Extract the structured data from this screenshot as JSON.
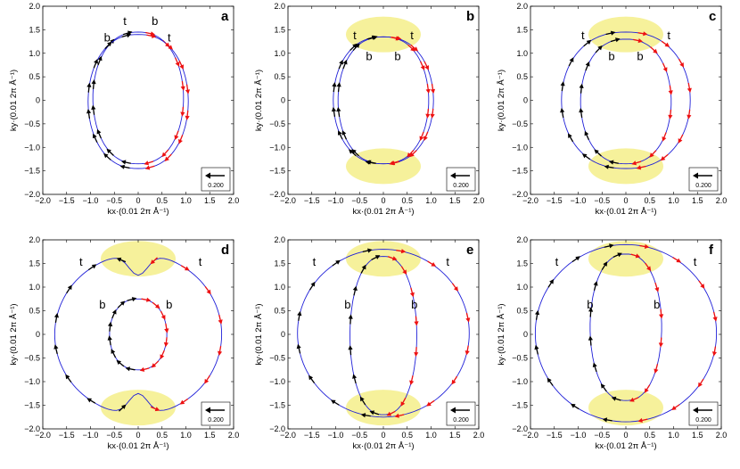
{
  "colors": {
    "contour": "#2020d8",
    "arrow_black": "#000000",
    "arrow_red": "#ee1111",
    "highlight": "#f5ef8a"
  },
  "chart_data": [
    {
      "type": "line",
      "panel": "a",
      "xlabel": "kx·(0.01 2π Å⁻¹)",
      "ylabel": "ky·(0.01 2π Å⁻¹)",
      "xlim": [
        -2.0,
        2.0
      ],
      "ylim": [
        -2.0,
        2.0
      ],
      "x_ticks": [
        "−2.0",
        "−1.5",
        "−1.0",
        "−0.5",
        "0",
        "0.5",
        "1.0",
        "1.5",
        "2.0"
      ],
      "y_ticks": [
        "2.0",
        "1.5",
        "1.0",
        "0.5",
        "0",
        "−0.5",
        "−1.0",
        "−1.5",
        "−2.0"
      ],
      "scale_label": "0.200",
      "series": [
        {
          "name": "contour-t",
          "shape": "lens",
          "a": 0.95,
          "top": 1.45,
          "bottom": -1.35,
          "arrows": "black-up-outer"
        },
        {
          "name": "contour-b",
          "shape": "offset",
          "a": 1.05,
          "top": 1.4,
          "bottom": -1.45,
          "arrows": "red-down-outer"
        }
      ],
      "annotations": [
        {
          "text": "t",
          "x": -0.28,
          "y": 1.6
        },
        {
          "text": "b",
          "x": 0.35,
          "y": 1.6
        },
        {
          "text": "b",
          "x": -0.65,
          "y": 1.25
        },
        {
          "text": "t",
          "x": 0.65,
          "y": 1.25
        }
      ],
      "highlights": []
    },
    {
      "type": "line",
      "panel": "b",
      "xlabel": "kx·(0.01 2π Å⁻¹)",
      "ylabel": "ky·(0.01 2π Å⁻¹)",
      "xlim": [
        -2.0,
        2.0
      ],
      "ylim": [
        -2.0,
        2.0
      ],
      "x_ticks": [
        "−2.0",
        "−1.5",
        "−1.0",
        "−0.5",
        "0",
        "0.5",
        "1.0",
        "1.5",
        "2.0"
      ],
      "y_ticks": [
        "2.0",
        "1.5",
        "1.0",
        "0.5",
        "0",
        "−0.5",
        "−1.0",
        "−1.5",
        "−2.0"
      ],
      "scale_label": "0.200",
      "series": [
        {
          "name": "contour-t",
          "shape": "lens",
          "a": 1.05,
          "top": 1.35,
          "bottom": -1.35
        },
        {
          "name": "contour-b",
          "shape": "lens",
          "a": 0.95,
          "top": 1.35,
          "bottom": -1.35
        }
      ],
      "annotations": [
        {
          "text": "t",
          "x": -0.6,
          "y": 1.3
        },
        {
          "text": "b",
          "x": -0.3,
          "y": 0.85
        },
        {
          "text": "b",
          "x": 0.3,
          "y": 0.85
        },
        {
          "text": "t",
          "x": 0.6,
          "y": 1.3
        }
      ],
      "highlights": [
        {
          "x": 0.0,
          "y": 1.4
        },
        {
          "x": 0.0,
          "y": -1.4
        }
      ]
    },
    {
      "type": "line",
      "panel": "c",
      "xlabel": "kx·(0.01 2π Å⁻¹)",
      "ylabel": "ky·(0.01 2π Å⁻¹)",
      "xlim": [
        -2.0,
        2.0
      ],
      "ylim": [
        -2.0,
        2.0
      ],
      "x_ticks": [
        "−2.0",
        "−1.5",
        "−1.0",
        "−0.5",
        "0",
        "0.5",
        "1.0",
        "1.5",
        "2.0"
      ],
      "y_ticks": [
        "2.0",
        "1.5",
        "1.0",
        "0.5",
        "0",
        "−0.5",
        "−1.0",
        "−1.5",
        "−2.0"
      ],
      "scale_label": "0.200",
      "series": [
        {
          "name": "contour-t",
          "shape": "lens",
          "a": 1.35,
          "top": 1.45,
          "bottom": -1.45
        },
        {
          "name": "contour-b",
          "shape": "lens",
          "a": 0.95,
          "top": 1.3,
          "bottom": -1.35
        }
      ],
      "annotations": [
        {
          "text": "t",
          "x": -0.9,
          "y": 1.3
        },
        {
          "text": "b",
          "x": -0.3,
          "y": 0.85
        },
        {
          "text": "b",
          "x": 0.3,
          "y": 0.85
        },
        {
          "text": "t",
          "x": 0.9,
          "y": 1.3
        }
      ],
      "highlights": [
        {
          "x": 0.0,
          "y": 1.4
        },
        {
          "x": 0.0,
          "y": -1.4
        }
      ]
    },
    {
      "type": "line",
      "panel": "d",
      "xlabel": "kx·(0.01 2π Å⁻¹)",
      "ylabel": "ky·(0.01 2π Å⁻¹)",
      "xlim": [
        -2.0,
        2.0
      ],
      "ylim": [
        -2.0,
        2.0
      ],
      "x_ticks": [
        "−2.0",
        "−1.5",
        "−1.0",
        "−0.5",
        "0",
        "0.5",
        "1.0",
        "1.5",
        "2.0"
      ],
      "y_ticks": [
        "2.0",
        "1.5",
        "1.0",
        "0.5",
        "0",
        "−0.5",
        "−1.0",
        "−1.5",
        "−2.0"
      ],
      "scale_label": "0.200",
      "series": [
        {
          "name": "contour-t",
          "shape": "notched",
          "a": 1.75,
          "top": 1.7,
          "bottom": -1.7
        },
        {
          "name": "contour-b",
          "shape": "lens",
          "a": 0.6,
          "top": 0.75,
          "bottom": -0.75
        }
      ],
      "annotations": [
        {
          "text": "t",
          "x": -1.2,
          "y": 1.45
        },
        {
          "text": "b",
          "x": -0.75,
          "y": 0.55
        },
        {
          "text": "b",
          "x": 0.65,
          "y": 0.55
        },
        {
          "text": "t",
          "x": 1.3,
          "y": 1.45
        }
      ],
      "highlights": [
        {
          "x": 0.0,
          "y": 1.6
        },
        {
          "x": 0.0,
          "y": -1.55
        }
      ]
    },
    {
      "type": "line",
      "panel": "e",
      "xlabel": "kx·(0.01 2π Å⁻¹)",
      "ylabel": "ky·(0.01 2π Å⁻¹)",
      "xlim": [
        -2.0,
        2.0
      ],
      "ylim": [
        -2.0,
        2.0
      ],
      "x_ticks": [
        "−2.0",
        "−1.5",
        "−1.0",
        "−0.5",
        "0",
        "0.5",
        "1.0",
        "1.5",
        "2.0"
      ],
      "y_ticks": [
        "2.0",
        "1.5",
        "1.0",
        "0.5",
        "0",
        "−0.5",
        "−1.0",
        "−1.5",
        "−2.0"
      ],
      "scale_label": "0.200",
      "series": [
        {
          "name": "contour-t",
          "shape": "circle",
          "a": 1.8,
          "top": 1.8,
          "bottom": -1.75
        },
        {
          "name": "contour-b",
          "shape": "lens",
          "a": 0.7,
          "top": 1.65,
          "bottom": -1.7
        }
      ],
      "annotations": [
        {
          "text": "t",
          "x": -1.45,
          "y": 1.45
        },
        {
          "text": "b",
          "x": -0.75,
          "y": 0.55
        },
        {
          "text": "b",
          "x": 0.65,
          "y": 0.55
        },
        {
          "text": "t",
          "x": 1.35,
          "y": 1.45
        }
      ],
      "highlights": [
        {
          "x": 0.0,
          "y": 1.6
        },
        {
          "x": 0.0,
          "y": -1.55
        }
      ]
    },
    {
      "type": "line",
      "panel": "f",
      "xlabel": "kx·(0.01 2π Å⁻¹)",
      "ylabel": "ky·(0.01 2π Å⁻¹)",
      "xlim": [
        -2.0,
        2.0
      ],
      "ylim": [
        -2.0,
        2.0
      ],
      "x_ticks": [
        "−2.0",
        "−1.5",
        "−1.0",
        "−0.5",
        "0",
        "0.5",
        "1.0",
        "1.5",
        "2.0"
      ],
      "y_ticks": [
        "2.0",
        "1.5",
        "1.0",
        "0.5",
        "0",
        "−0.5",
        "−1.0",
        "−1.5",
        "−2.0"
      ],
      "scale_label": "0.200",
      "series": [
        {
          "name": "contour-t",
          "shape": "circle",
          "a": 1.9,
          "top": 1.9,
          "bottom": -1.85
        },
        {
          "name": "contour-b",
          "shape": "lens",
          "a": 0.75,
          "top": 1.7,
          "bottom": -1.4
        }
      ],
      "annotations": [
        {
          "text": "t",
          "x": -1.45,
          "y": 1.45
        },
        {
          "text": "b",
          "x": -0.75,
          "y": 0.55
        },
        {
          "text": "b",
          "x": 0.65,
          "y": 0.55
        },
        {
          "text": "t",
          "x": 1.45,
          "y": 1.45
        }
      ],
      "highlights": [
        {
          "x": 0.0,
          "y": 1.6
        },
        {
          "x": 0.0,
          "y": -1.55
        }
      ]
    }
  ]
}
